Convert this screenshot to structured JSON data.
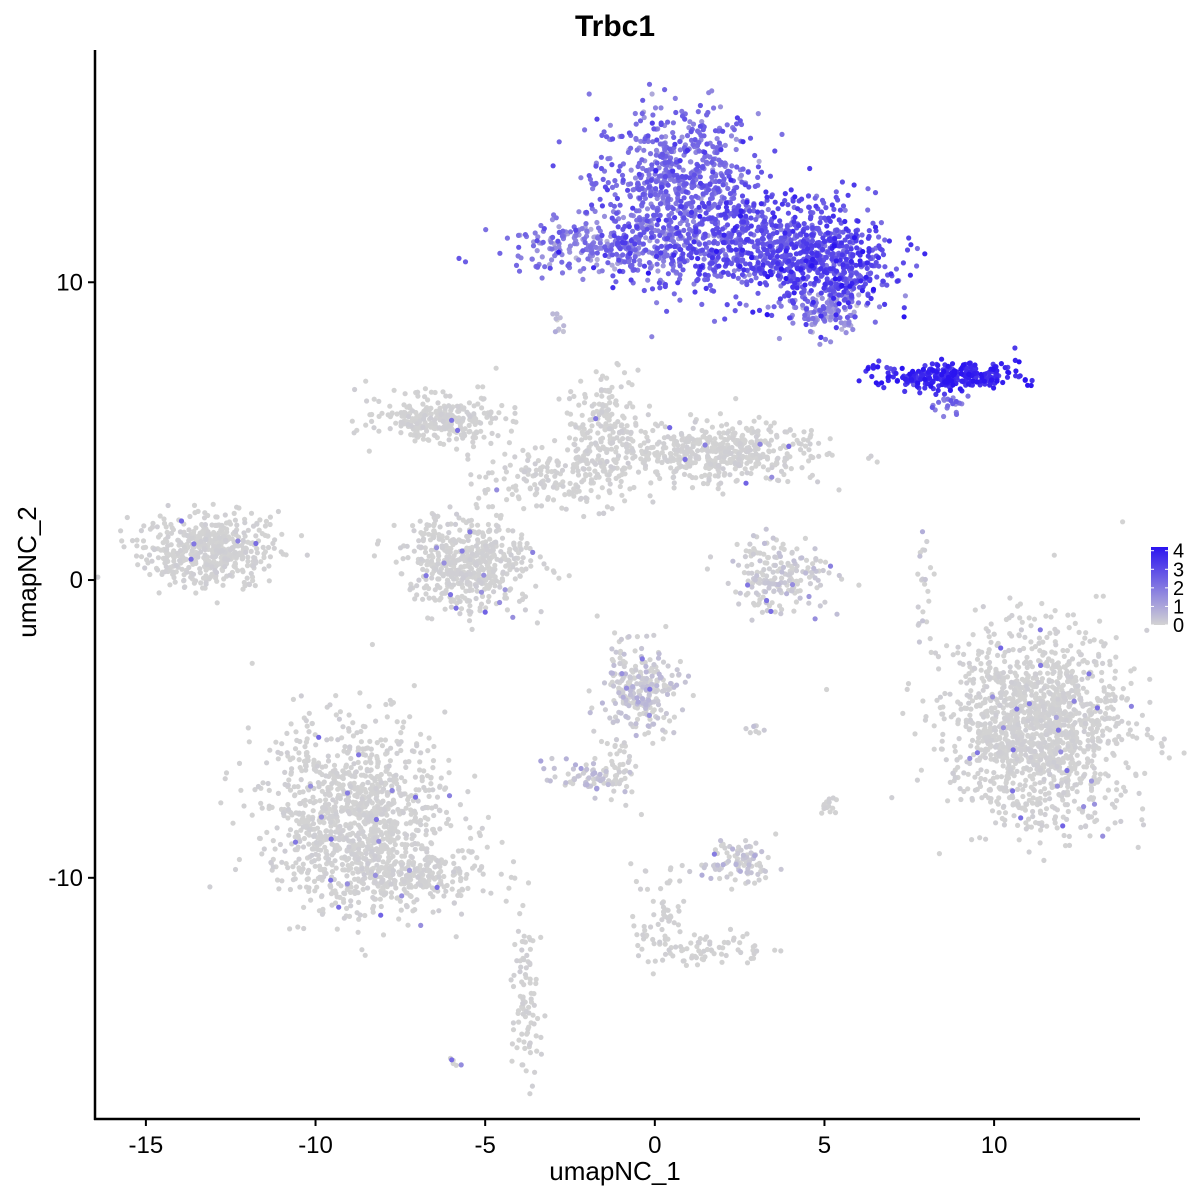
{
  "chart_data": {
    "type": "scatter",
    "title": "Trbc1",
    "xlabel": "umapNC_1",
    "ylabel": "umapNC_2",
    "xlim": [
      -16.5,
      14.3
    ],
    "ylim": [
      -18.1,
      17.8
    ],
    "x_ticks": [
      -15,
      -10,
      -5,
      0,
      5,
      10
    ],
    "x_tick_labels": [
      "-15",
      "-10",
      "-5",
      "0",
      "5",
      "10"
    ],
    "y_ticks": [
      -10,
      0,
      10
    ],
    "y_tick_labels": [
      "-10",
      "0",
      "10"
    ],
    "grid": false,
    "color_scale": {
      "low_color": "#d3d3d3",
      "high_color": "#2b14f0",
      "min": 0,
      "max": 4.2,
      "breaks": [
        0,
        1,
        2,
        3,
        4
      ],
      "break_labels": [
        "0",
        "1",
        "2",
        "3",
        "4"
      ],
      "legend_position": "right"
    },
    "clusters": [
      {
        "cx": 0.6,
        "cy": 13.4,
        "sx": 1.2,
        "sy": 1.3,
        "n": 700,
        "expr_mean": 2.2,
        "expr_sd": 0.5
      },
      {
        "cx": 3.1,
        "cy": 11.2,
        "sx": 1.7,
        "sy": 0.9,
        "n": 700,
        "expr_mean": 2.8,
        "expr_sd": 0.5
      },
      {
        "cx": 5.2,
        "cy": 10.5,
        "sx": 0.9,
        "sy": 0.8,
        "n": 380,
        "expr_mean": 2.9,
        "expr_sd": 0.6
      },
      {
        "cx": -1.2,
        "cy": 11.2,
        "sx": 1.6,
        "sy": 0.45,
        "n": 300,
        "expr_mean": 1.9,
        "expr_sd": 0.6
      },
      {
        "cx": 5.0,
        "cy": 9.0,
        "sx": 0.55,
        "sy": 0.45,
        "n": 110,
        "expr_mean": 1.4,
        "expr_sd": 0.5
      },
      {
        "cx": 8.7,
        "cy": 6.85,
        "sx": 1.0,
        "sy": 0.22,
        "n": 300,
        "expr_mean": 3.7,
        "expr_sd": 0.4
      },
      {
        "cx": 8.7,
        "cy": 5.9,
        "sx": 0.3,
        "sy": 0.15,
        "n": 20,
        "expr_mean": 2.1,
        "expr_sd": 0.4
      },
      {
        "cx": 11.3,
        "cy": -4.9,
        "sx": 1.3,
        "sy": 1.6,
        "n": 1500,
        "expr_mean": 0.02,
        "expr_sd": 0.05
      },
      {
        "cx": -8.8,
        "cy": -7.9,
        "sx": 1.3,
        "sy": 1.6,
        "n": 1100,
        "expr_mean": 0.02,
        "expr_sd": 0.05
      },
      {
        "cx": -7.2,
        "cy": -9.9,
        "sx": 1.2,
        "sy": 0.45,
        "n": 250,
        "expr_mean": 0.02,
        "expr_sd": 0.05
      },
      {
        "cx": -3.8,
        "cy": -13.8,
        "sx": 0.2,
        "sy": 1.5,
        "n": 90,
        "expr_mean": 0.02,
        "expr_sd": 0.05
      },
      {
        "cx": -13.1,
        "cy": 1.0,
        "sx": 1.0,
        "sy": 0.6,
        "n": 500,
        "expr_mean": 0.02,
        "expr_sd": 0.05
      },
      {
        "cx": -5.5,
        "cy": 0.6,
        "sx": 0.9,
        "sy": 0.8,
        "n": 550,
        "expr_mean": 0.02,
        "expr_sd": 0.05
      },
      {
        "cx": -6.4,
        "cy": 5.4,
        "sx": 0.9,
        "sy": 0.4,
        "n": 300,
        "expr_mean": 0.02,
        "expr_sd": 0.05
      },
      {
        "cx": -2.8,
        "cy": 3.4,
        "sx": 1.2,
        "sy": 0.55,
        "n": 180,
        "expr_mean": 0.02,
        "expr_sd": 0.05
      },
      {
        "cx": -1.5,
        "cy": 5.1,
        "sx": 0.5,
        "sy": 0.9,
        "n": 180,
        "expr_mean": 0.02,
        "expr_sd": 0.05
      },
      {
        "cx": 1.8,
        "cy": 4.3,
        "sx": 1.6,
        "sy": 0.5,
        "n": 500,
        "expr_mean": 0.02,
        "expr_sd": 0.05
      },
      {
        "cx": 3.7,
        "cy": 0.2,
        "sx": 0.7,
        "sy": 0.65,
        "n": 200,
        "expr_mean": 0.05,
        "expr_sd": 0.2
      },
      {
        "cx": -0.4,
        "cy": -3.6,
        "sx": 0.55,
        "sy": 0.75,
        "n": 250,
        "expr_mean": 0.12,
        "expr_sd": 0.35
      },
      {
        "cx": -1.1,
        "cy": -6.3,
        "sx": 0.3,
        "sy": 0.8,
        "n": 50,
        "expr_mean": 0.02,
        "expr_sd": 0.05
      },
      {
        "cx": -2.0,
        "cy": -6.7,
        "sx": 0.5,
        "sy": 0.25,
        "n": 60,
        "expr_mean": 0.2,
        "expr_sd": 0.4
      },
      {
        "cx": 2.5,
        "cy": -9.5,
        "sx": 0.55,
        "sy": 0.4,
        "n": 90,
        "expr_mean": 0.1,
        "expr_sd": 0.3
      },
      {
        "cx": 0.2,
        "cy": -11.3,
        "sx": 0.4,
        "sy": 0.9,
        "n": 60,
        "expr_mean": 0.02,
        "expr_sd": 0.05
      },
      {
        "cx": 1.8,
        "cy": -12.4,
        "sx": 1.0,
        "sy": 0.25,
        "n": 70,
        "expr_mean": 0.02,
        "expr_sd": 0.05
      },
      {
        "cx": 7.9,
        "cy": -0.3,
        "sx": 0.12,
        "sy": 1.0,
        "n": 20,
        "expr_mean": 0.1,
        "expr_sd": 0.3
      },
      {
        "cx": 5.1,
        "cy": -7.5,
        "sx": 0.15,
        "sy": 0.25,
        "n": 15,
        "expr_mean": 0.02,
        "expr_sd": 0.05
      },
      {
        "cx": -2.9,
        "cy": 8.6,
        "sx": 0.15,
        "sy": 0.2,
        "n": 10,
        "expr_mean": 0.5,
        "expr_sd": 0.3
      },
      {
        "cx": 2.9,
        "cy": -5.0,
        "sx": 0.15,
        "sy": 0.1,
        "n": 8,
        "expr_mean": 0.1,
        "expr_sd": 0.2
      },
      {
        "cx": -6.0,
        "cy": -16.2,
        "sx": 0.1,
        "sy": 0.1,
        "n": 6,
        "expr_mean": 0.02,
        "expr_sd": 0.05
      }
    ]
  }
}
